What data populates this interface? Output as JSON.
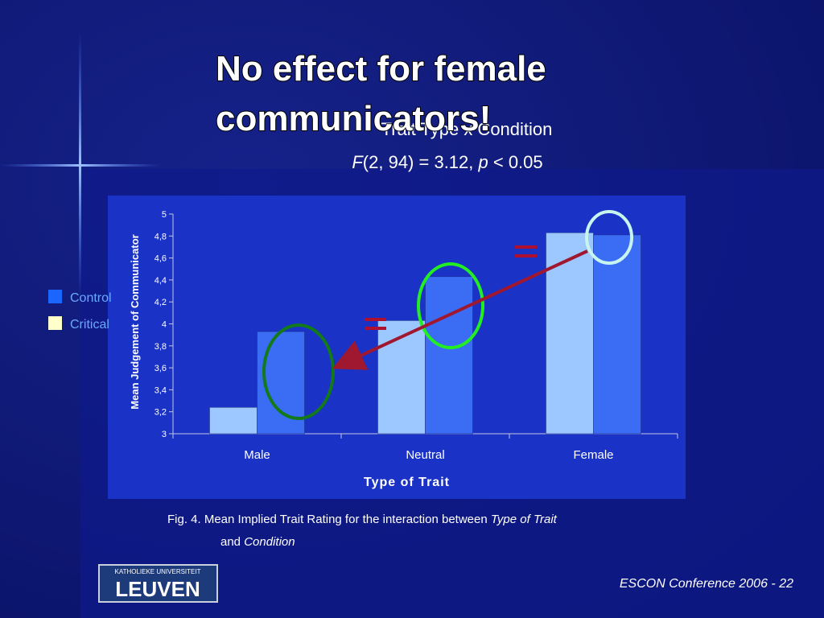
{
  "title": "No effect for female communicators!",
  "stat_heading": "Trait Type x Condition",
  "stat_line": [
    "F",
    "(2, 94) = 3.12, ",
    "p",
    " < 0.05"
  ],
  "chart_data": {
    "type": "bar",
    "categories": [
      "Male",
      "Neutral",
      "Female"
    ],
    "series": [
      {
        "name": "Control",
        "color": "#3a6cf4",
        "legend_color": "#1a66ff",
        "values": [
          3.93,
          4.43,
          4.81
        ]
      },
      {
        "name": "Critical",
        "color": "#9cc8ff",
        "legend_color": "#ffffcc",
        "values": [
          3.24,
          4.03,
          4.83
        ]
      }
    ],
    "ylim": [
      3,
      5
    ],
    "yticks": [
      3,
      {
        "value": 3.2,
        "label": "3,2"
      },
      {
        "value": 3.4,
        "label": "3,4"
      },
      {
        "value": 3.6,
        "label": "3,6"
      },
      {
        "value": 3.8,
        "label": "3,8"
      },
      4,
      {
        "value": 4.2,
        "label": "4,2"
      },
      {
        "value": 4.4,
        "label": "4,4"
      },
      {
        "value": 4.6,
        "label": "4,6"
      },
      {
        "value": 4.8,
        "label": "4,8"
      },
      5
    ],
    "y_label": "Mean Judgement of Communicator",
    "x_label": "Type of Trait",
    "legend": "left"
  },
  "caption": {
    "prefix": "Fig. 4.  Mean Implied Trait Rating for the interaction between ",
    "italic1": "Type of Trait",
    "middle": "and ",
    "italic2": "Condition"
  },
  "footer": "ESCON Conference 2006 - 22",
  "logo": {
    "top": "KATHOLIEKE UNIVERSITEIT",
    "bottom": "LEUVEN"
  }
}
